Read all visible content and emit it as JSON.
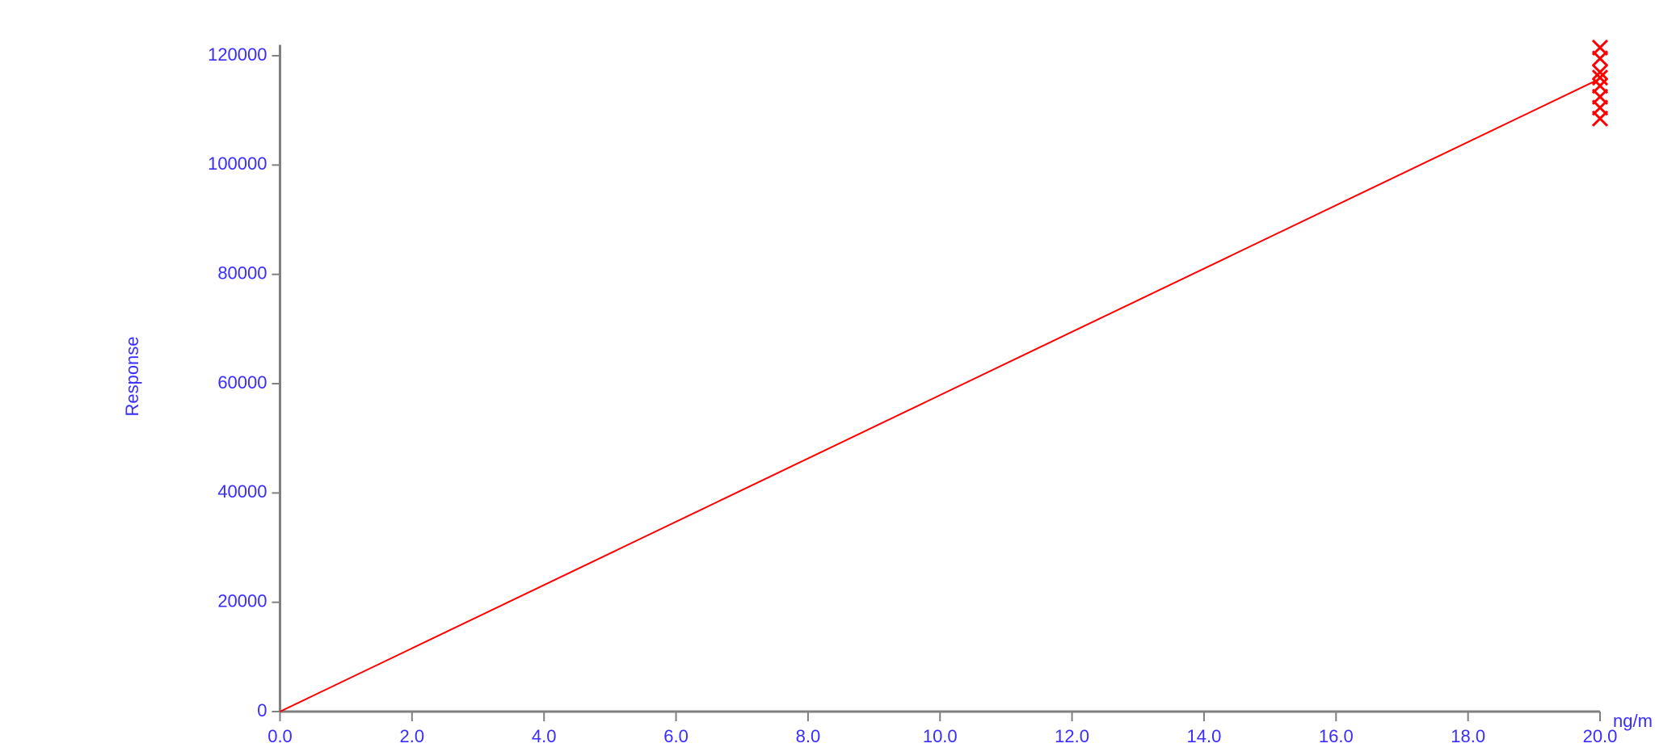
{
  "chart_data": {
    "type": "scatter",
    "y_label": "Response",
    "x_label": "ng/m",
    "xlim": [
      0,
      20
    ],
    "ylim": [
      0,
      122000
    ],
    "xticks": [
      {
        "value": 0,
        "label": "0.0"
      },
      {
        "value": 2,
        "label": "2.0"
      },
      {
        "value": 4,
        "label": "4.0"
      },
      {
        "value": 6,
        "label": "6.0"
      },
      {
        "value": 8,
        "label": "8.0"
      },
      {
        "value": 10,
        "label": "10.0"
      },
      {
        "value": 12,
        "label": "12.0"
      },
      {
        "value": 14,
        "label": "14.0"
      },
      {
        "value": 16,
        "label": "16.0"
      },
      {
        "value": 18,
        "label": "18.0"
      },
      {
        "value": 20,
        "label": "20.0"
      }
    ],
    "yticks": [
      0,
      20000,
      40000,
      60000,
      80000,
      100000,
      120000
    ],
    "grid": false,
    "series": [
      {
        "type": "line",
        "color": "#ff0000",
        "x": [
          0,
          20
        ],
        "values": [
          0,
          115800
        ]
      },
      {
        "type": "scatter",
        "marker": "x",
        "color": "#ff0000",
        "x": [
          20,
          20,
          20,
          20,
          20,
          20,
          20,
          20
        ],
        "values": [
          121500,
          119500,
          117000,
          116000,
          114500,
          112500,
          110500,
          108500
        ]
      }
    ]
  }
}
